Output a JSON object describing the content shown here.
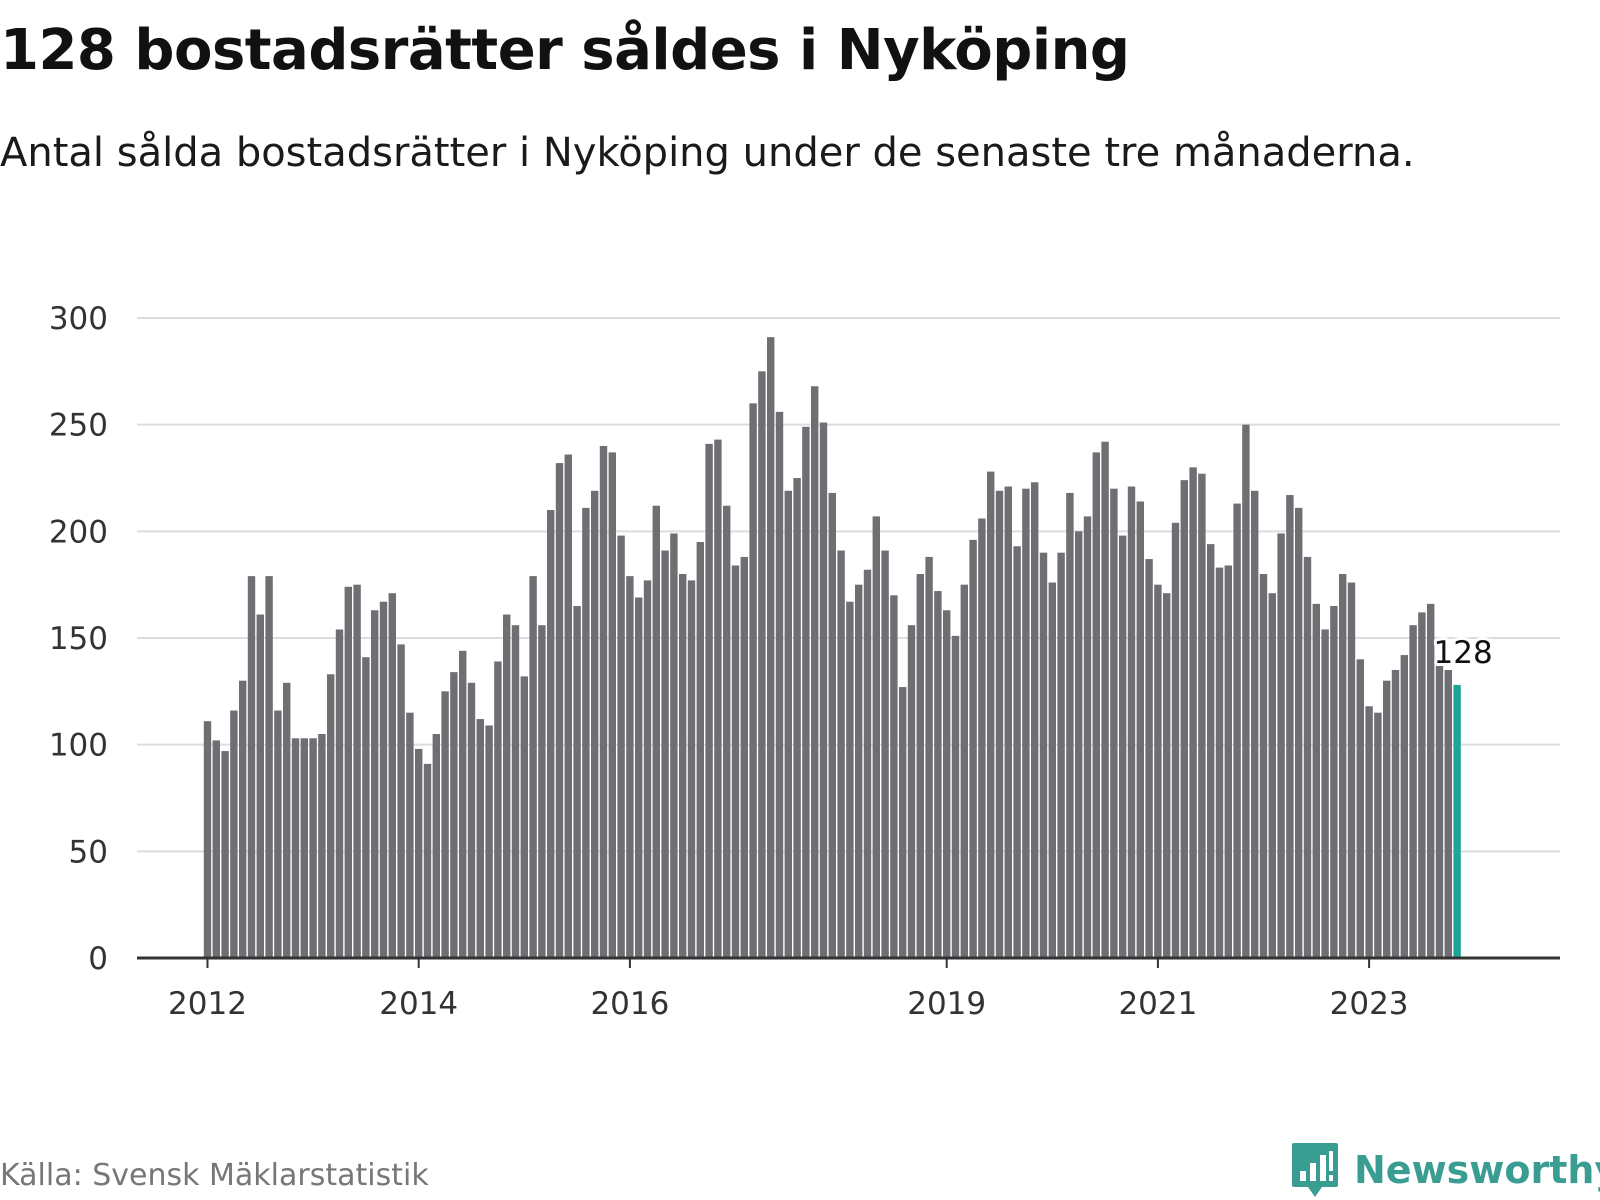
{
  "title": "128 bostadsrätter såldes i Nyköping",
  "subtitle": "Antal sålda bostadsrätter i Nyköping under de senaste tre månaderna.",
  "source": "Källa: Svensk Mäklarstatistik",
  "brand": {
    "name": "Newsworthy",
    "icon": "newsworthy-logo-icon",
    "color": "#3a9d92"
  },
  "chart_data": {
    "type": "bar",
    "title": "128 bostadsrätter såldes i Nyköping",
    "subtitle": "Antal sålda bostadsrätter i Nyköping under de senaste tre månaderna.",
    "xlabel": "",
    "ylabel": "",
    "ylim": [
      0,
      300
    ],
    "yticks": [
      0,
      50,
      100,
      150,
      200,
      250,
      300
    ],
    "xticks": [
      {
        "label": "2012",
        "index": 0
      },
      {
        "label": "2014",
        "index": 24
      },
      {
        "label": "2016",
        "index": 48
      },
      {
        "label": "2019",
        "index": 84
      },
      {
        "label": "2021",
        "index": 108
      },
      {
        "label": "2023",
        "index": 132
      }
    ],
    "grid": true,
    "bar_color": "#6e6e73",
    "highlight_color": "#1fa596",
    "highlight_label": "128",
    "values": [
      111,
      102,
      97,
      116,
      130,
      179,
      161,
      179,
      116,
      129,
      103,
      103,
      103,
      105,
      133,
      154,
      174,
      175,
      141,
      163,
      167,
      171,
      147,
      115,
      98,
      91,
      105,
      125,
      134,
      144,
      129,
      112,
      109,
      139,
      161,
      156,
      132,
      179,
      156,
      210,
      232,
      236,
      165,
      211,
      219,
      240,
      237,
      198,
      179,
      169,
      177,
      212,
      191,
      199,
      180,
      177,
      195,
      241,
      243,
      212,
      184,
      188,
      260,
      275,
      291,
      256,
      219,
      225,
      249,
      268,
      251,
      218,
      191,
      167,
      175,
      182,
      207,
      191,
      170,
      127,
      156,
      180,
      188,
      172,
      163,
      151,
      175,
      196,
      206,
      228,
      219,
      221,
      193,
      220,
      223,
      190,
      176,
      190,
      218,
      200,
      207,
      237,
      242,
      220,
      198,
      221,
      214,
      187,
      175,
      171,
      204,
      224,
      230,
      227,
      194,
      183,
      184,
      213,
      250,
      219,
      180,
      171,
      199,
      217,
      211,
      188,
      166,
      154,
      165,
      180,
      176,
      140,
      118,
      115,
      130,
      135,
      142,
      156,
      162,
      166,
      138,
      135,
      128
    ]
  }
}
